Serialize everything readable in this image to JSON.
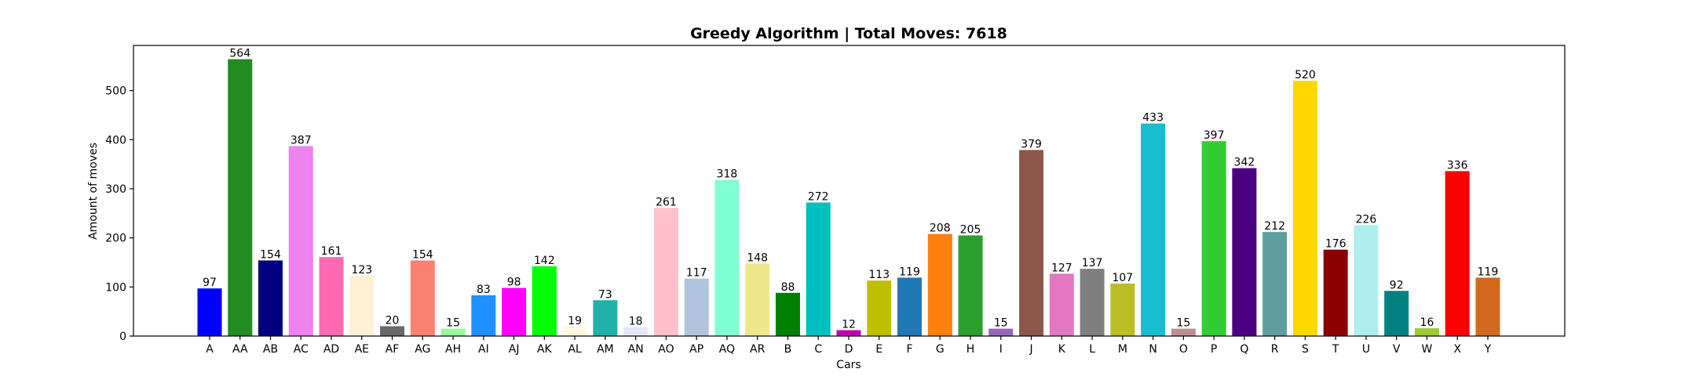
{
  "chart_data": {
    "type": "bar",
    "title": "Greedy Algorithm | Total Moves: 7618",
    "xlabel": "Cars",
    "ylabel": "Amount of moves",
    "ylim": [
      0,
      592
    ],
    "yticks": [
      0,
      100,
      200,
      300,
      400,
      500
    ],
    "grid": false,
    "legend": "none",
    "categories": [
      "A",
      "AA",
      "AB",
      "AC",
      "AD",
      "AE",
      "AF",
      "AG",
      "AH",
      "AI",
      "AJ",
      "AK",
      "AL",
      "AM",
      "AN",
      "AO",
      "AP",
      "AQ",
      "AR",
      "B",
      "C",
      "D",
      "E",
      "F",
      "G",
      "H",
      "I",
      "J",
      "K",
      "L",
      "M",
      "N",
      "O",
      "P",
      "Q",
      "R",
      "S",
      "T",
      "U",
      "V",
      "W",
      "X",
      "Y"
    ],
    "values": [
      97,
      564,
      154,
      387,
      161,
      123,
      20,
      154,
      15,
      83,
      98,
      142,
      19,
      73,
      18,
      261,
      117,
      318,
      148,
      88,
      272,
      12,
      113,
      119,
      208,
      205,
      15,
      379,
      127,
      137,
      107,
      433,
      15,
      397,
      342,
      212,
      520,
      176,
      226,
      92,
      16,
      336,
      119
    ],
    "colors": [
      "#0000ff",
      "#228b22",
      "#000080",
      "#ee82ee",
      "#ff69b4",
      "#ffefd5",
      "#696969",
      "#fa8072",
      "#98fb98",
      "#1e90ff",
      "#ff00ff",
      "#00ff00",
      "#fff8dc",
      "#20b2aa",
      "#e6e6fa",
      "#ffc0cb",
      "#b0c4de",
      "#7fffd4",
      "#f0e68c",
      "#008000",
      "#00bfbf",
      "#bf00bf",
      "#bfbf00",
      "#1f77b4",
      "#ff7f0e",
      "#2ca02c",
      "#9467bd",
      "#8c564b",
      "#e377c2",
      "#7f7f7f",
      "#bcbd22",
      "#17becf",
      "#bc8f8f",
      "#32cd32",
      "#4b0082",
      "#5f9ea0",
      "#ffd700",
      "#8b0000",
      "#afeeee",
      "#008080",
      "#9acd32",
      "#ff0000",
      "#d2691e"
    ]
  }
}
